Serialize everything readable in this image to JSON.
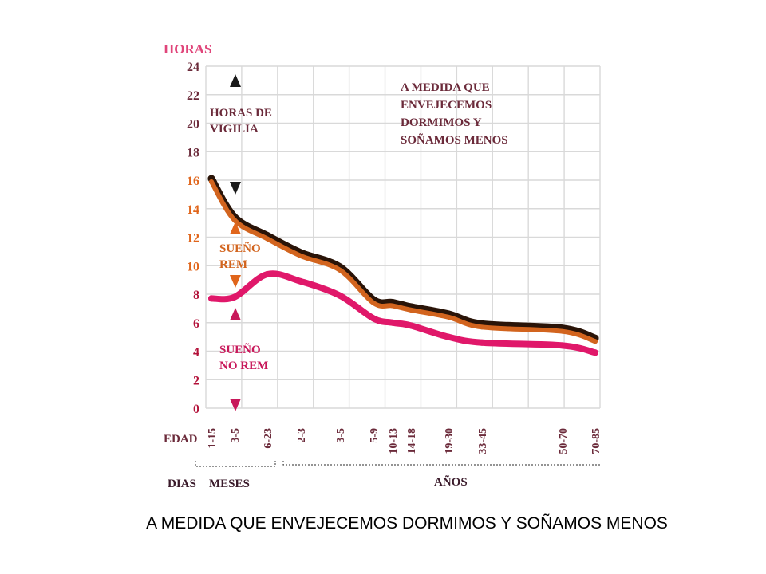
{
  "chart_data": {
    "type": "line",
    "ylabel": "HORAS",
    "xlabel": "EDAD",
    "ylim": [
      0,
      24
    ],
    "y_ticks": [
      "0",
      "2",
      "4",
      "6",
      "8",
      "10",
      "12",
      "14",
      "16",
      "18",
      "20",
      "22",
      "24"
    ],
    "y_tick_colors": [
      "#b3123a",
      "#b3123a",
      "#b3123a",
      "#b3123a",
      "#b3123a",
      "#e0651b",
      "#e0651b",
      "#e0651b",
      "#e0651b",
      "#6b2a3a",
      "#6b2a3a",
      "#6b2a3a",
      "#6b2a3a"
    ],
    "x": [
      "1-15",
      "3-5",
      "6-23",
      "2-3",
      "3-5",
      "5-9",
      "10-13",
      "14-18",
      "19-30",
      "33-45",
      "50-70",
      "70-85"
    ],
    "x_groups": [
      "DIAS",
      "MESES",
      "AÑOS"
    ],
    "grid": true,
    "series": [
      {
        "color": "#2a1408",
        "values": [
          16,
          13.3,
          12,
          10.8,
          9.8,
          7.5,
          7.3,
          7,
          6.5,
          5.8,
          5.5,
          4.8
        ]
      },
      {
        "color": "#d2641e",
        "values": [
          16,
          13.3,
          12,
          10.8,
          9.8,
          7.5,
          7.3,
          7,
          6.5,
          5.8,
          5.5,
          4.8
        ]
      },
      {
        "color": "#e0186a",
        "values": [
          7.7,
          7.8,
          9.4,
          8.9,
          7.9,
          6.3,
          6,
          5.8,
          5,
          4.6,
          4.4,
          3.9
        ]
      }
    ],
    "annotations": [
      {
        "id": "vigilia",
        "text": [
          "HORAS DE",
          "VIGILIA"
        ],
        "color": "#6b2a3a",
        "arrow_color": "#1a1a1a"
      },
      {
        "id": "rem",
        "text": [
          "SUEÑO",
          "REM"
        ],
        "color": "#d2641e",
        "arrow_color": "#e0651b"
      },
      {
        "id": "norem",
        "text": [
          "SUEÑO",
          "NO REM"
        ],
        "color": "#c8185a",
        "arrow_color": "#c8185a"
      }
    ],
    "title_note": [
      "A MEDIDA QUE",
      "ENVEJECEMOS",
      "DORMIMOS Y",
      "SOÑAMOS MENOS"
    ],
    "title_color": "#6b2a3a",
    "ylabel_color": "#e0457a",
    "axis_label_color": "#6b2a3a"
  },
  "caption": "A MEDIDA QUE ENVEJECEMOS DORMIMOS Y SOÑAMOS MENOS"
}
